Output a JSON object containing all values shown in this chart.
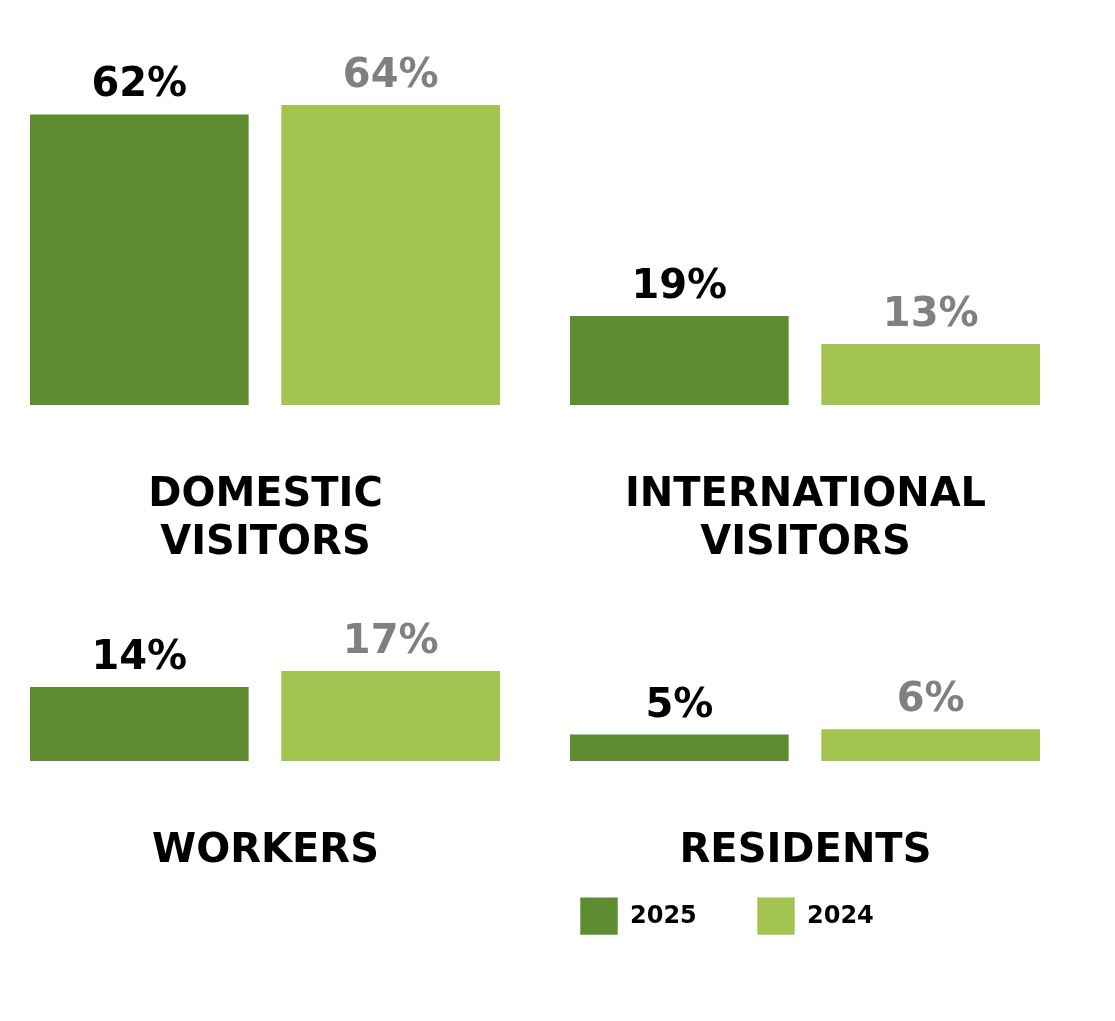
{
  "chart_data": [
    {
      "type": "bar",
      "categories": [
        null
      ],
      "xlabel": "DOMESTIC VISITORS",
      "series": [
        {
          "color": "#5e8c31",
          "values": [
            62
          ],
          "value_labels": [
            "62%"
          ]
        },
        {
          "color": "#a3c450",
          "values": [
            64
          ],
          "value_labels": [
            "64%"
          ]
        }
      ]
    },
    {
      "type": "bar",
      "categories": [
        null
      ],
      "xlabel": "INTERNATIONAL VISITORS",
      "series": [
        {
          "color": "#5e8c31",
          "values": [
            19
          ],
          "value_labels": [
            "19%"
          ]
        },
        {
          "color": "#a3c450",
          "values": [
            13
          ],
          "value_labels": [
            "13%"
          ]
        }
      ]
    },
    {
      "type": "bar",
      "categories": [
        null
      ],
      "xlabel": "WORKERS",
      "series": [
        {
          "color": "#5e8c31",
          "values": [
            14
          ],
          "value_labels": [
            "14%"
          ]
        },
        {
          "color": "#a3c450",
          "values": [
            17
          ],
          "value_labels": [
            "17%"
          ]
        }
      ]
    },
    {
      "type": "bar",
      "categories": [
        null
      ],
      "xlabel": "RESIDENTS",
      "series": [
        {
          "name": "2025",
          "color": "#5e8c31",
          "values": [
            5
          ],
          "value_labels": [
            "5%"
          ]
        },
        {
          "name": "2024",
          "color": "#a3c450",
          "values": [
            6
          ],
          "value_labels": [
            "6%"
          ]
        }
      ],
      "legend": "bottom"
    }
  ]
}
